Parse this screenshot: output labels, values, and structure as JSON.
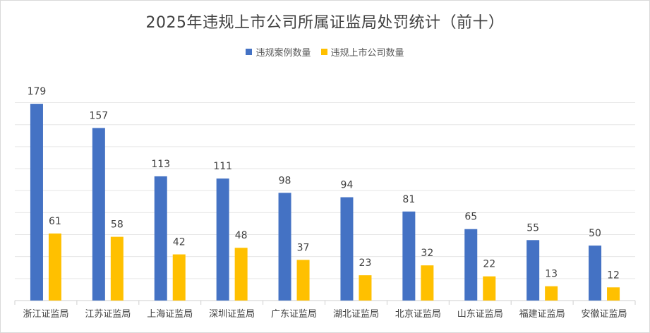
{
  "chart_data": {
    "type": "bar",
    "title": "2025年违规上市公司所属证监局处罚统计（前十）",
    "categories": [
      "浙江证监局",
      "江苏证监局",
      "上海证监局",
      "深圳证监局",
      "广东证监局",
      "湖北证监局",
      "北京证监局",
      "山东证监局",
      "福建证监局",
      "安徽证监局"
    ],
    "series": [
      {
        "name": "违规案例数量",
        "color": "#4472C4",
        "values": [
          179,
          157,
          113,
          111,
          98,
          94,
          81,
          65,
          55,
          50
        ]
      },
      {
        "name": "违规上市公司数量",
        "color": "#FFC000",
        "values": [
          61,
          58,
          42,
          48,
          37,
          23,
          32,
          22,
          13,
          12
        ]
      }
    ],
    "ylim": [
      0,
      180
    ],
    "grid": true,
    "legend_position": "top"
  }
}
